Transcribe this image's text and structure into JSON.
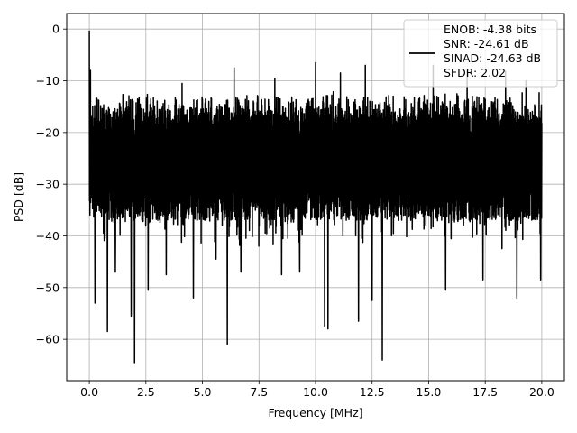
{
  "chart_data": {
    "type": "line",
    "title": "",
    "xlabel": "Frequency [MHz]",
    "ylabel": "PSD [dB]",
    "xlim": [
      -1.0,
      21.0
    ],
    "ylim": [
      -68.0,
      3.0
    ],
    "grid": true,
    "legend_placement": "top-right",
    "x_ticks": [
      0.0,
      2.5,
      5.0,
      7.5,
      10.0,
      12.5,
      15.0,
      17.5,
      20.0
    ],
    "x_tick_labels": [
      "0.0",
      "2.5",
      "5.0",
      "7.5",
      "10.0",
      "12.5",
      "15.0",
      "17.5",
      "20.0"
    ],
    "y_ticks": [
      0,
      -10,
      -20,
      -30,
      -40,
      -50,
      -60
    ],
    "y_tick_labels": [
      "0",
      "−10",
      "−20",
      "−30",
      "−40",
      "−50",
      "−60"
    ],
    "legend": {
      "lines": [
        "ENOB: -4.38 bits",
        "SNR: -24.61 dB",
        "SINAD: -24.63 dB",
        "SFDR: 2.02"
      ]
    },
    "series": [
      {
        "color": "#000000",
        "x_range": [
          0.0,
          20.0
        ],
        "baseline_db": -23,
        "upper_envelope_db": -13,
        "lower_envelope_db": -33,
        "peaks": [
          {
            "x": 0.0,
            "y": -0.3
          },
          {
            "x": 0.05,
            "y": -8.0
          },
          {
            "x": 0.25,
            "y": -11.0
          },
          {
            "x": 4.1,
            "y": -10.5
          },
          {
            "x": 6.4,
            "y": -7.5
          },
          {
            "x": 8.2,
            "y": -9.5
          },
          {
            "x": 10.0,
            "y": -6.5
          },
          {
            "x": 11.1,
            "y": -8.5
          },
          {
            "x": 12.2,
            "y": -7.0
          },
          {
            "x": 15.2,
            "y": -7.0
          },
          {
            "x": 16.7,
            "y": -8.0
          },
          {
            "x": 18.4,
            "y": -8.2
          },
          {
            "x": 19.3,
            "y": -10.0
          }
        ],
        "troughs": [
          {
            "x": 0.25,
            "y": -53.0
          },
          {
            "x": 0.8,
            "y": -58.5
          },
          {
            "x": 1.15,
            "y": -47.0
          },
          {
            "x": 1.85,
            "y": -55.5
          },
          {
            "x": 2.0,
            "y": -64.5
          },
          {
            "x": 2.6,
            "y": -50.5
          },
          {
            "x": 3.4,
            "y": -47.5
          },
          {
            "x": 4.6,
            "y": -52.0
          },
          {
            "x": 5.6,
            "y": -44.5
          },
          {
            "x": 6.1,
            "y": -61.0
          },
          {
            "x": 6.7,
            "y": -47.0
          },
          {
            "x": 8.5,
            "y": -47.5
          },
          {
            "x": 9.3,
            "y": -47.0
          },
          {
            "x": 10.4,
            "y": -57.5
          },
          {
            "x": 10.55,
            "y": -58.0
          },
          {
            "x": 11.9,
            "y": -56.5
          },
          {
            "x": 12.5,
            "y": -52.5
          },
          {
            "x": 12.95,
            "y": -64.0
          },
          {
            "x": 15.75,
            "y": -50.5
          },
          {
            "x": 17.4,
            "y": -48.5
          },
          {
            "x": 18.9,
            "y": -52.0
          },
          {
            "x": 19.95,
            "y": -48.5
          }
        ]
      }
    ]
  }
}
